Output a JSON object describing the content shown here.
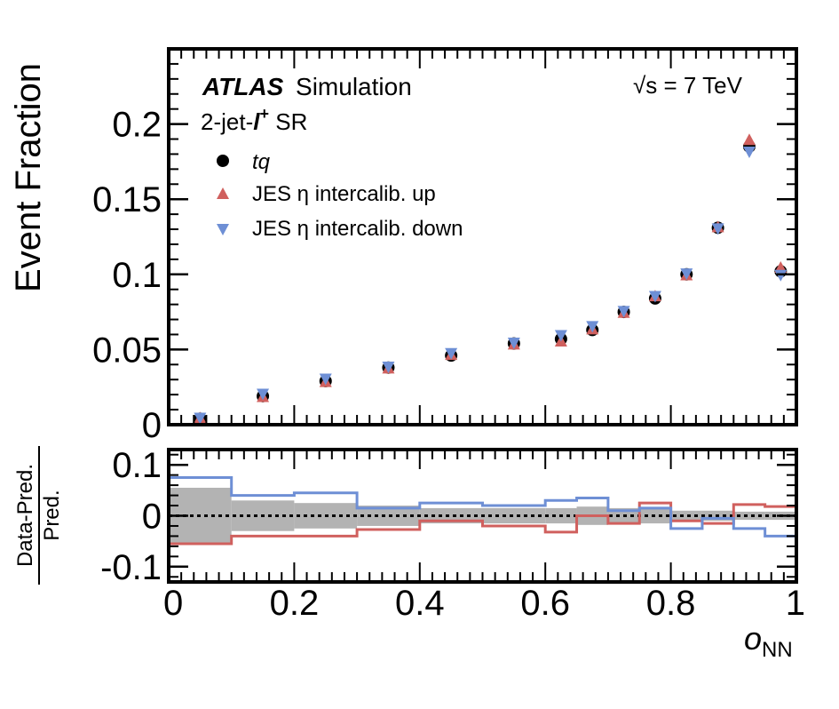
{
  "chart_data": [
    {
      "type": "scatter",
      "ylabel": "Event Fraction",
      "ylim": [
        0,
        0.25
      ],
      "xlim": [
        0,
        1
      ],
      "y_ticks": [
        {
          "v": 0,
          "label": "0"
        },
        {
          "v": 0.05,
          "label": "0.05"
        },
        {
          "v": 0.1,
          "label": "0.1"
        },
        {
          "v": 0.15,
          "label": "0.15"
        },
        {
          "v": 0.2,
          "label": "0.2"
        }
      ],
      "annotations": {
        "atlas": "ATLAS",
        "simulation": "Simulation",
        "region_prefix": "2-jet-",
        "region_lepton": "l",
        "region_charge": "+",
        "region_suffix": " SR",
        "energy_sqrt": "√s",
        "energy_value": " = 7 TeV"
      },
      "legend": {
        "placement": "top-left"
      },
      "series": [
        {
          "name": "tq",
          "marker": "circle",
          "color": "#000000",
          "x": [
            0.05,
            0.15,
            0.25,
            0.35,
            0.45,
            0.55,
            0.625,
            0.675,
            0.725,
            0.775,
            0.825,
            0.875,
            0.925,
            0.975
          ],
          "y": [
            0.004,
            0.019,
            0.029,
            0.038,
            0.046,
            0.054,
            0.057,
            0.063,
            0.075,
            0.084,
            0.1,
            0.131,
            0.185,
            0.102
          ]
        },
        {
          "name": "JES η intercalib. up",
          "marker": "triangle-up",
          "color": "#d0605e",
          "x": [
            0.05,
            0.15,
            0.25,
            0.35,
            0.45,
            0.55,
            0.625,
            0.675,
            0.725,
            0.775,
            0.825,
            0.875,
            0.925,
            0.975
          ],
          "y": [
            0.004,
            0.018,
            0.028,
            0.037,
            0.046,
            0.053,
            0.055,
            0.063,
            0.074,
            0.085,
            0.099,
            0.131,
            0.189,
            0.104
          ]
        },
        {
          "name": "JES η intercalib. down",
          "marker": "triangle-down",
          "color": "#6e8fd5",
          "x": [
            0.05,
            0.15,
            0.25,
            0.35,
            0.45,
            0.55,
            0.625,
            0.675,
            0.725,
            0.775,
            0.825,
            0.875,
            0.925,
            0.975
          ],
          "y": [
            0.005,
            0.021,
            0.031,
            0.039,
            0.048,
            0.055,
            0.06,
            0.066,
            0.076,
            0.086,
            0.101,
            0.131,
            0.182,
            0.1
          ]
        }
      ]
    },
    {
      "type": "line",
      "xlabel_main": "o",
      "xlabel_sub": "NN",
      "ylabel_num": "Data-Pred.",
      "ylabel_den": "Pred.",
      "ylim": [
        -0.13,
        0.13
      ],
      "xlim": [
        0,
        1
      ],
      "x_ticks": [
        {
          "v": 0,
          "label": "0"
        },
        {
          "v": 0.2,
          "label": "0.2"
        },
        {
          "v": 0.4,
          "label": "0.4"
        },
        {
          "v": 0.6,
          "label": "0.6"
        },
        {
          "v": 0.8,
          "label": "0.8"
        },
        {
          "v": 1,
          "label": "1"
        }
      ],
      "y_ticks": [
        {
          "v": -0.1,
          "label": "-0.1"
        },
        {
          "v": 0,
          "label": "0"
        },
        {
          "v": 0.1,
          "label": "0.1"
        }
      ],
      "bin_edges": [
        0,
        0.1,
        0.2,
        0.3,
        0.4,
        0.5,
        0.6,
        0.65,
        0.7,
        0.75,
        0.8,
        0.85,
        0.9,
        0.95,
        1.0
      ],
      "band_color": "#b3b3b3",
      "band_halfwidth": [
        0.055,
        0.03,
        0.025,
        0.02,
        0.015,
        0.015,
        0.015,
        0.018,
        0.015,
        0.015,
        0.01,
        0.01,
        0.008,
        0.008
      ],
      "steps": [
        {
          "name": "JES η intercalib. up",
          "color": "#d0605e",
          "values": [
            -0.055,
            -0.04,
            -0.04,
            -0.027,
            -0.01,
            -0.02,
            -0.032,
            0.0,
            -0.015,
            0.025,
            -0.01,
            -0.015,
            0.022,
            0.018
          ]
        },
        {
          "name": "JES η intercalib. down",
          "color": "#6e8fd5",
          "values": [
            0.075,
            0.04,
            0.045,
            0.015,
            0.025,
            0.02,
            0.03,
            0.035,
            0.01,
            0.015,
            -0.025,
            -0.005,
            -0.025,
            -0.04
          ]
        }
      ]
    }
  ]
}
